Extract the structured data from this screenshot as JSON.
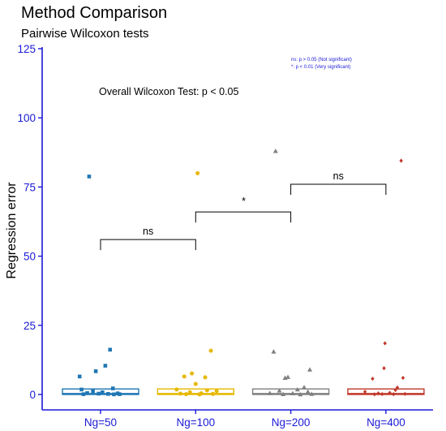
{
  "chart_data": {
    "type": "box-jitter",
    "title": "Method Comparison",
    "subtitle": "Pairwise Wilcoxon tests",
    "ylabel": "Regression error",
    "xlabel": "",
    "ylim": [
      0,
      125
    ],
    "yticks": [
      0,
      25,
      50,
      75,
      100,
      125
    ],
    "grid": false,
    "categories": [
      "Ng=50",
      "Ng=100",
      "Ng=200",
      "Ng=400"
    ],
    "colors": [
      "#1f77b4",
      "#e6b800",
      "#808080",
      "#c0392b"
    ],
    "markers": [
      "square",
      "circle",
      "triangle",
      "diamond"
    ],
    "boxes": [
      {
        "q1": 0.0,
        "median": 0.3,
        "q3": 2.0
      },
      {
        "q1": 0.0,
        "median": 0.3,
        "q3": 2.0
      },
      {
        "q1": 0.0,
        "median": 0.3,
        "q3": 2.0
      },
      {
        "q1": 0.0,
        "median": 0.3,
        "q3": 2.0
      }
    ],
    "points": [
      [
        {
          "x": -0.12,
          "y": 78.8
        },
        {
          "x": 0.1,
          "y": 16.2
        },
        {
          "x": 0.05,
          "y": 10.4
        },
        {
          "x": -0.05,
          "y": 8.4
        },
        {
          "x": -0.22,
          "y": 6.5
        },
        {
          "x": 0.13,
          "y": 2.2
        },
        {
          "x": -0.2,
          "y": 1.8
        },
        {
          "x": -0.08,
          "y": 1.2
        },
        {
          "x": 0.02,
          "y": 0.8
        },
        {
          "x": -0.14,
          "y": 0.5
        },
        {
          "x": 0.18,
          "y": 0.4
        },
        {
          "x": -0.02,
          "y": 0.3
        },
        {
          "x": 0.08,
          "y": 0.2
        },
        {
          "x": 0.2,
          "y": 0.1
        },
        {
          "x": -0.18,
          "y": 0.1
        },
        {
          "x": 0.14,
          "y": 0.05
        }
      ],
      [
        {
          "x": 0.02,
          "y": 80.0
        },
        {
          "x": 0.16,
          "y": 15.8
        },
        {
          "x": -0.04,
          "y": 7.6
        },
        {
          "x": -0.12,
          "y": 6.5
        },
        {
          "x": 0.1,
          "y": 6.2
        },
        {
          "x": 0.0,
          "y": 3.8
        },
        {
          "x": -0.2,
          "y": 1.8
        },
        {
          "x": 0.12,
          "y": 1.5
        },
        {
          "x": 0.22,
          "y": 1.2
        },
        {
          "x": -0.06,
          "y": 0.8
        },
        {
          "x": 0.06,
          "y": 0.4
        },
        {
          "x": -0.16,
          "y": 0.3
        },
        {
          "x": 0.18,
          "y": 0.2
        },
        {
          "x": -0.1,
          "y": 0.1
        },
        {
          "x": 0.04,
          "y": 0.05
        }
      ],
      [
        {
          "x": -0.16,
          "y": 88.0
        },
        {
          "x": -0.18,
          "y": 15.5
        },
        {
          "x": 0.2,
          "y": 9.0
        },
        {
          "x": -0.03,
          "y": 6.3
        },
        {
          "x": -0.06,
          "y": 6.0
        },
        {
          "x": 0.14,
          "y": 2.6
        },
        {
          "x": 0.07,
          "y": 1.8
        },
        {
          "x": -0.12,
          "y": 1.4
        },
        {
          "x": 0.18,
          "y": 1.0
        },
        {
          "x": -0.22,
          "y": 0.5
        },
        {
          "x": 0.02,
          "y": 0.4
        },
        {
          "x": 0.22,
          "y": 0.2
        },
        {
          "x": -0.08,
          "y": 0.1
        },
        {
          "x": 0.1,
          "y": 0.05
        }
      ],
      [
        {
          "x": 0.16,
          "y": 84.5
        },
        {
          "x": -0.01,
          "y": 18.5
        },
        {
          "x": -0.02,
          "y": 9.5
        },
        {
          "x": 0.18,
          "y": 6.0
        },
        {
          "x": -0.14,
          "y": 5.7
        },
        {
          "x": 0.12,
          "y": 2.5
        },
        {
          "x": 0.1,
          "y": 1.6
        },
        {
          "x": -0.22,
          "y": 1.0
        },
        {
          "x": 0.04,
          "y": 0.6
        },
        {
          "x": -0.08,
          "y": 0.4
        },
        {
          "x": 0.2,
          "y": 0.2
        },
        {
          "x": -0.04,
          "y": 0.15
        },
        {
          "x": 0.08,
          "y": 0.1
        },
        {
          "x": -0.12,
          "y": 0.05
        }
      ]
    ],
    "annotations": {
      "overall": "Overall Wilcoxon Test: p < 0.05",
      "legend": [
        "ns: p > 0.05 (Not significant)",
        "*: p < 0.01 (Very significant)"
      ]
    },
    "comparisons": [
      {
        "from": 0,
        "to": 1,
        "y": 56,
        "label": "ns"
      },
      {
        "from": 1,
        "to": 2,
        "y": 66,
        "label": "*"
      },
      {
        "from": 2,
        "to": 3,
        "y": 76,
        "label": "ns"
      }
    ]
  }
}
